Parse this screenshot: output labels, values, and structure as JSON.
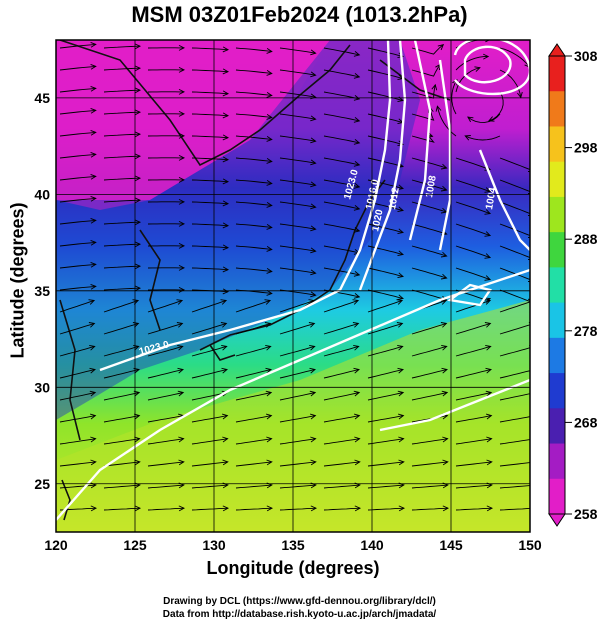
{
  "title": "MSM 03Z01Feb2024 (1013.2hPa)",
  "map": {
    "lon_range": [
      120,
      150
    ],
    "lat_range": [
      22.5,
      48
    ],
    "x_ticks": [
      "120",
      "125",
      "130",
      "135",
      "140",
      "145",
      "150"
    ],
    "y_ticks": [
      "25",
      "30",
      "35",
      "40",
      "45"
    ],
    "xlabel": "Longitude (degrees)",
    "ylabel": "Latitude  (degrees)",
    "contour_labels": [
      "1023.0",
      "1020",
      "1016.0",
      "1012",
      "1008",
      "1004",
      "1023.0"
    ]
  },
  "colorbar": {
    "ticks": [
      "308",
      "298",
      "288",
      "278",
      "268",
      "258"
    ],
    "colors": [
      "#e8201e",
      "#f07a1a",
      "#f6c21c",
      "#e2ea1c",
      "#9ee61e",
      "#3fd63e",
      "#22dfa6",
      "#1ac4e6",
      "#1d7ae4",
      "#1f3bd0",
      "#4a1fb0",
      "#a41cc4",
      "#e21ec8"
    ]
  },
  "credits": {
    "line1": "Drawing by DCL (https://www.gfd-dennou.org/library/dcl/)",
    "line2": "Data from http://database.rish.kyoto-u.ac.jp/arch/jmadata/"
  }
}
